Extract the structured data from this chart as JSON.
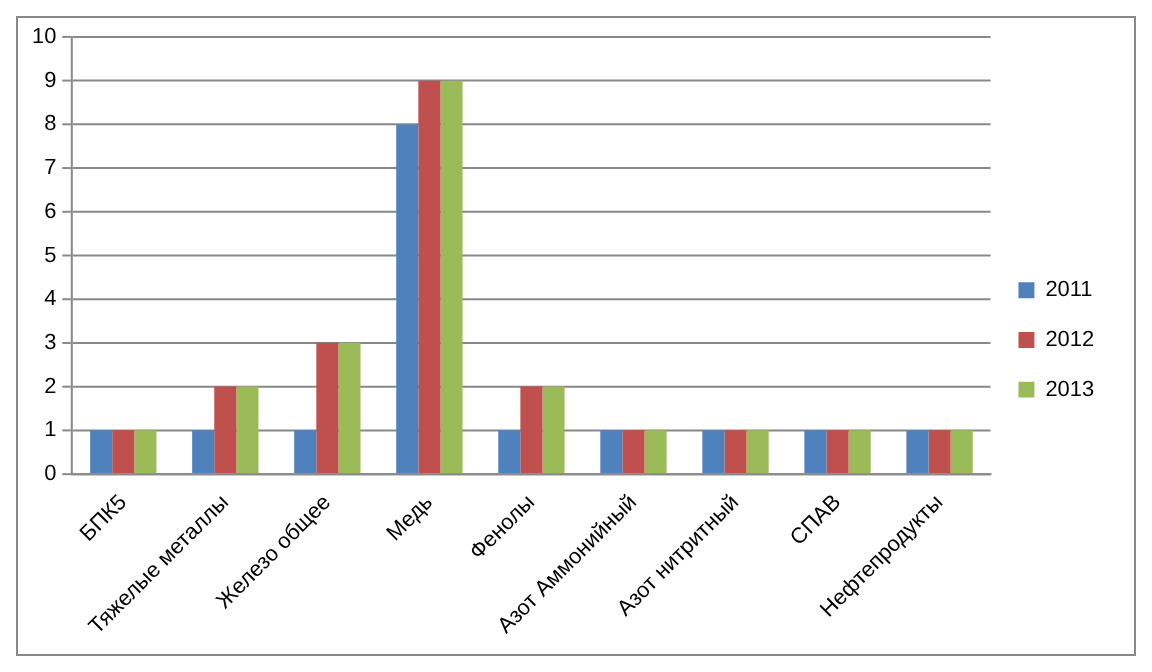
{
  "chart_data": {
    "type": "bar",
    "categories": [
      "БПК5",
      "Тяжелые металлы",
      "Железо общее",
      "Медь",
      "Фенолы",
      "Азот Аммонийный",
      "Азот нитритный",
      "СПАВ",
      "Нефтепродукты"
    ],
    "series": [
      {
        "name": "2011",
        "color": "#4f81bd",
        "values": [
          1,
          1,
          1,
          8,
          1,
          1,
          1,
          1,
          1
        ]
      },
      {
        "name": "2012",
        "color": "#c0504d",
        "values": [
          1,
          2,
          3,
          9,
          2,
          1,
          1,
          1,
          1
        ]
      },
      {
        "name": "2013",
        "color": "#9bbb59",
        "values": [
          1,
          2,
          3,
          9,
          2,
          1,
          1,
          1,
          1
        ]
      }
    ],
    "ylim": [
      0,
      10
    ],
    "yticks": [
      0,
      1,
      2,
      3,
      4,
      5,
      6,
      7,
      8,
      9,
      10
    ],
    "grid": "y",
    "legend": "right"
  }
}
